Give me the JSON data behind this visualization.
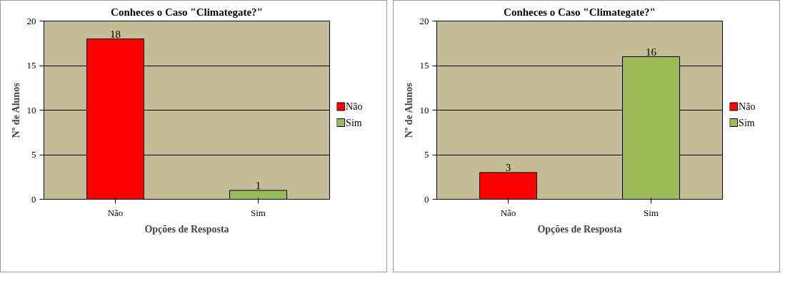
{
  "chart_data": [
    {
      "type": "bar",
      "title": "Conheces o Caso \"Climategate?\"",
      "xlabel": "Opções de Resposta",
      "ylabel": "Nº de Alunos",
      "categories": [
        "Não",
        "Sim"
      ],
      "series": [
        {
          "name": "Não",
          "color": "#ff0000",
          "values": [
            18,
            null
          ]
        },
        {
          "name": "Sim",
          "color": "#9bbb59",
          "values": [
            null,
            1
          ]
        }
      ],
      "ylim": [
        0,
        20
      ],
      "yticks": [
        0,
        5,
        10,
        15,
        20
      ],
      "grid": "y",
      "legend": "right",
      "data_labels": true
    },
    {
      "type": "bar",
      "title": "Conheces o Caso \"Climategate?\"",
      "xlabel": "Opções de Resposta",
      "ylabel": "Nº de Alunos",
      "categories": [
        "Não",
        "Sim"
      ],
      "series": [
        {
          "name": "Não",
          "color": "#ff0000",
          "values": [
            3,
            null
          ]
        },
        {
          "name": "Sim",
          "color": "#9bbb59",
          "values": [
            null,
            16
          ]
        }
      ],
      "ylim": [
        0,
        20
      ],
      "yticks": [
        0,
        5,
        10,
        15,
        20
      ],
      "grid": "y",
      "legend": "right",
      "data_labels": true
    }
  ]
}
